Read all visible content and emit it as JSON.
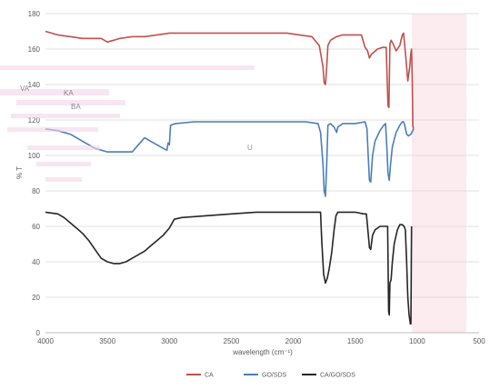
{
  "chart_data": {
    "type": "line",
    "title": "",
    "xlabel": "wavelength (cm⁻¹)",
    "ylabel": "% T",
    "xlim": [
      4000,
      500
    ],
    "ylim": [
      0,
      180
    ],
    "x_ticks": [
      "4000",
      "3500",
      "3000",
      "2500",
      "2000",
      "1500",
      "1000",
      "500"
    ],
    "x_tick_values": [
      4000,
      3500,
      3000,
      2500,
      2000,
      1500,
      1000,
      500
    ],
    "y_ticks": [
      "0",
      "20",
      "40",
      "60",
      "80",
      "100",
      "120",
      "140",
      "160",
      "180"
    ],
    "y_tick_values": [
      0,
      20,
      40,
      60,
      80,
      100,
      120,
      140,
      160,
      180
    ],
    "grid": true,
    "legend_position": "bottom",
    "series": [
      {
        "name": "CA",
        "color": "#c0504d",
        "points": [
          [
            4000,
            170
          ],
          [
            3900,
            168
          ],
          [
            3800,
            167
          ],
          [
            3700,
            166
          ],
          [
            3600,
            166
          ],
          [
            3550,
            166
          ],
          [
            3500,
            164
          ],
          [
            3450,
            165
          ],
          [
            3400,
            166
          ],
          [
            3300,
            167
          ],
          [
            3200,
            167
          ],
          [
            3100,
            168
          ],
          [
            3000,
            169
          ],
          [
            2800,
            169
          ],
          [
            2600,
            169
          ],
          [
            2400,
            169
          ],
          [
            2200,
            169
          ],
          [
            2050,
            169
          ],
          [
            1950,
            168
          ],
          [
            1850,
            167
          ],
          [
            1790,
            162
          ],
          [
            1760,
            150
          ],
          [
            1750,
            141
          ],
          [
            1740,
            140
          ],
          [
            1730,
            150
          ],
          [
            1720,
            162
          ],
          [
            1700,
            165
          ],
          [
            1650,
            167
          ],
          [
            1600,
            168
          ],
          [
            1500,
            168
          ],
          [
            1450,
            168
          ],
          [
            1420,
            161
          ],
          [
            1400,
            159
          ],
          [
            1385,
            155
          ],
          [
            1370,
            157
          ],
          [
            1320,
            160
          ],
          [
            1280,
            161
          ],
          [
            1250,
            161
          ],
          [
            1235,
            128
          ],
          [
            1228,
            127
          ],
          [
            1220,
            163
          ],
          [
            1210,
            165
          ],
          [
            1195,
            163
          ],
          [
            1170,
            159
          ],
          [
            1140,
            162
          ],
          [
            1120,
            168
          ],
          [
            1110,
            169
          ],
          [
            1100,
            162
          ],
          [
            1085,
            150
          ],
          [
            1075,
            142
          ],
          [
            1060,
            150
          ],
          [
            1050,
            158
          ],
          [
            1045,
            160
          ],
          [
            1040,
            145
          ],
          [
            1035,
            117
          ],
          [
            1030,
            115
          ]
        ]
      },
      {
        "name": "GO/SDS",
        "color": "#4a7ebb",
        "points": [
          [
            4000,
            115
          ],
          [
            3900,
            114
          ],
          [
            3800,
            112
          ],
          [
            3700,
            108
          ],
          [
            3650,
            106
          ],
          [
            3600,
            104
          ],
          [
            3500,
            102
          ],
          [
            3400,
            102
          ],
          [
            3300,
            102
          ],
          [
            3250,
            106
          ],
          [
            3200,
            110
          ],
          [
            3150,
            108
          ],
          [
            3100,
            106
          ],
          [
            3050,
            104
          ],
          [
            3020,
            103
          ],
          [
            3010,
            107
          ],
          [
            3000,
            106
          ],
          [
            2990,
            117
          ],
          [
            2950,
            118
          ],
          [
            2800,
            119
          ],
          [
            2500,
            119
          ],
          [
            2200,
            119
          ],
          [
            2000,
            119
          ],
          [
            1900,
            119
          ],
          [
            1800,
            118
          ],
          [
            1780,
            113
          ],
          [
            1760,
            95
          ],
          [
            1750,
            80
          ],
          [
            1740,
            77
          ],
          [
            1730,
            95
          ],
          [
            1720,
            117
          ],
          [
            1700,
            118
          ],
          [
            1670,
            116
          ],
          [
            1650,
            113
          ],
          [
            1640,
            116
          ],
          [
            1600,
            118
          ],
          [
            1500,
            118
          ],
          [
            1420,
            119
          ],
          [
            1405,
            115
          ],
          [
            1395,
            100
          ],
          [
            1385,
            86
          ],
          [
            1375,
            85
          ],
          [
            1360,
            100
          ],
          [
            1340,
            108
          ],
          [
            1300,
            114
          ],
          [
            1270,
            117
          ],
          [
            1255,
            118
          ],
          [
            1245,
            105
          ],
          [
            1235,
            90
          ],
          [
            1225,
            86
          ],
          [
            1215,
            95
          ],
          [
            1200,
            105
          ],
          [
            1170,
            113
          ],
          [
            1140,
            117
          ],
          [
            1120,
            119
          ],
          [
            1110,
            119
          ],
          [
            1100,
            117
          ],
          [
            1085,
            112
          ],
          [
            1070,
            111
          ],
          [
            1050,
            112
          ],
          [
            1035,
            114
          ],
          [
            1030,
            115
          ]
        ]
      },
      {
        "name": "CA/GO/SDS",
        "color": "#262626",
        "points": [
          [
            4000,
            68
          ],
          [
            3900,
            67
          ],
          [
            3850,
            65
          ],
          [
            3800,
            62
          ],
          [
            3750,
            59
          ],
          [
            3700,
            56
          ],
          [
            3650,
            52
          ],
          [
            3600,
            47
          ],
          [
            3550,
            42
          ],
          [
            3500,
            40
          ],
          [
            3450,
            39
          ],
          [
            3400,
            39
          ],
          [
            3350,
            40
          ],
          [
            3300,
            42
          ],
          [
            3250,
            44
          ],
          [
            3200,
            46
          ],
          [
            3150,
            49
          ],
          [
            3100,
            52
          ],
          [
            3050,
            55
          ],
          [
            3000,
            59
          ],
          [
            2960,
            64
          ],
          [
            2900,
            65
          ],
          [
            2700,
            66
          ],
          [
            2500,
            67
          ],
          [
            2300,
            68
          ],
          [
            2100,
            68
          ],
          [
            1900,
            68
          ],
          [
            1780,
            68
          ],
          [
            1770,
            52
          ],
          [
            1755,
            33
          ],
          [
            1740,
            28
          ],
          [
            1725,
            31
          ],
          [
            1710,
            36
          ],
          [
            1690,
            45
          ],
          [
            1670,
            58
          ],
          [
            1655,
            66
          ],
          [
            1640,
            68
          ],
          [
            1600,
            68
          ],
          [
            1500,
            68
          ],
          [
            1430,
            67
          ],
          [
            1410,
            67
          ],
          [
            1400,
            60
          ],
          [
            1385,
            48
          ],
          [
            1375,
            47
          ],
          [
            1360,
            55
          ],
          [
            1340,
            58
          ],
          [
            1300,
            60
          ],
          [
            1250,
            60
          ],
          [
            1238,
            60
          ],
          [
            1230,
            12
          ],
          [
            1225,
            10
          ],
          [
            1220,
            28
          ],
          [
            1210,
            30
          ],
          [
            1200,
            40
          ],
          [
            1185,
            50
          ],
          [
            1160,
            58
          ],
          [
            1140,
            61
          ],
          [
            1120,
            61
          ],
          [
            1105,
            60
          ],
          [
            1095,
            58
          ],
          [
            1085,
            40
          ],
          [
            1075,
            20
          ],
          [
            1065,
            10
          ],
          [
            1055,
            5
          ],
          [
            1050,
            5
          ],
          [
            1045,
            60
          ]
        ]
      }
    ]
  },
  "overlay_text": [
    "VA",
    "KA",
    "BA",
    "U"
  ]
}
